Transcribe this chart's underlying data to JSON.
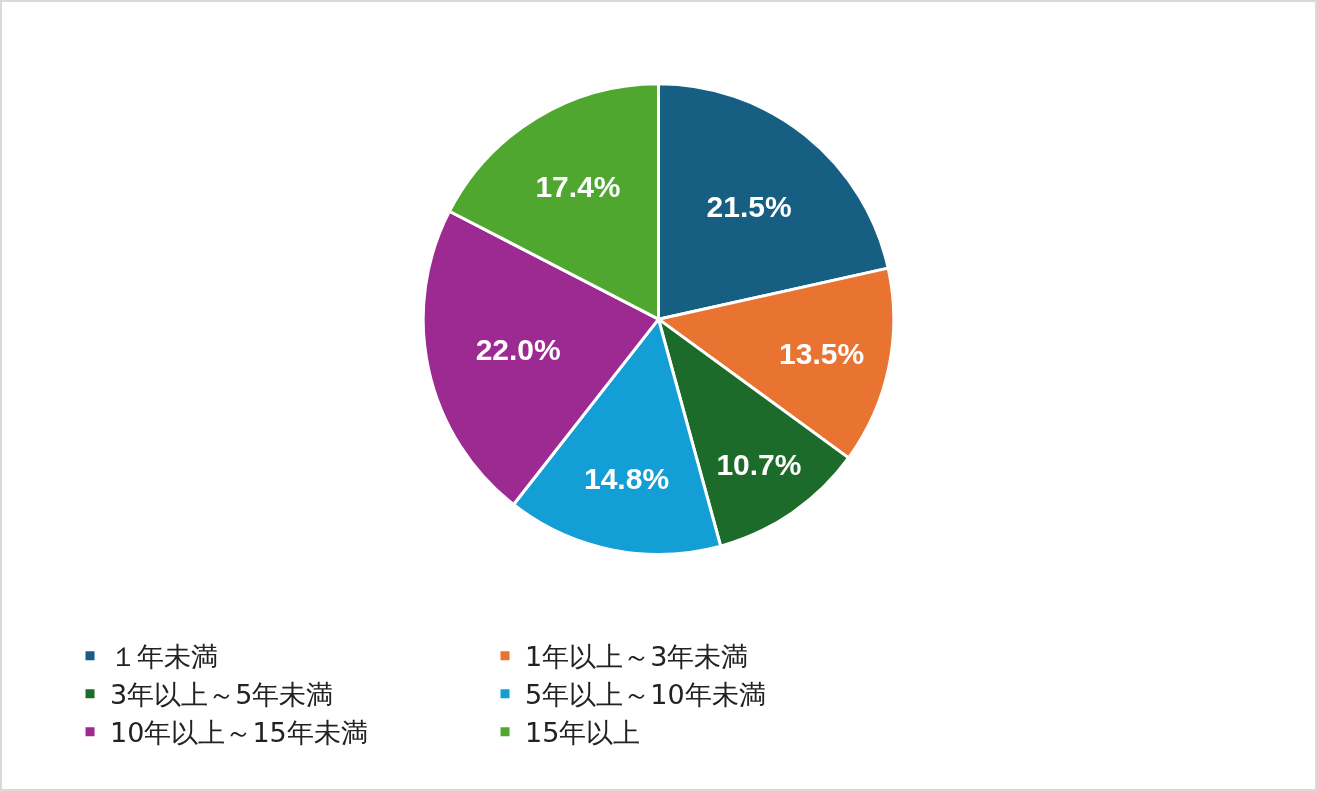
{
  "chart_data": {
    "type": "pie",
    "categories": [
      "１年未満",
      "1年以上～3年未満",
      "3年以上～5年未満",
      "5年以上～10年未満",
      "10年以上～15年未満",
      "15年以上"
    ],
    "values": [
      21.5,
      13.5,
      10.7,
      14.8,
      22.0,
      17.4
    ],
    "value_labels": [
      "21.5%",
      "13.5%",
      "10.7%",
      "14.8%",
      "22.0%",
      "17.4%"
    ],
    "colors": [
      "#175f82",
      "#e97432",
      "#1d6b2b",
      "#139fd6",
      "#9c2a91",
      "#4fa72f"
    ],
    "legend": "bottom"
  }
}
